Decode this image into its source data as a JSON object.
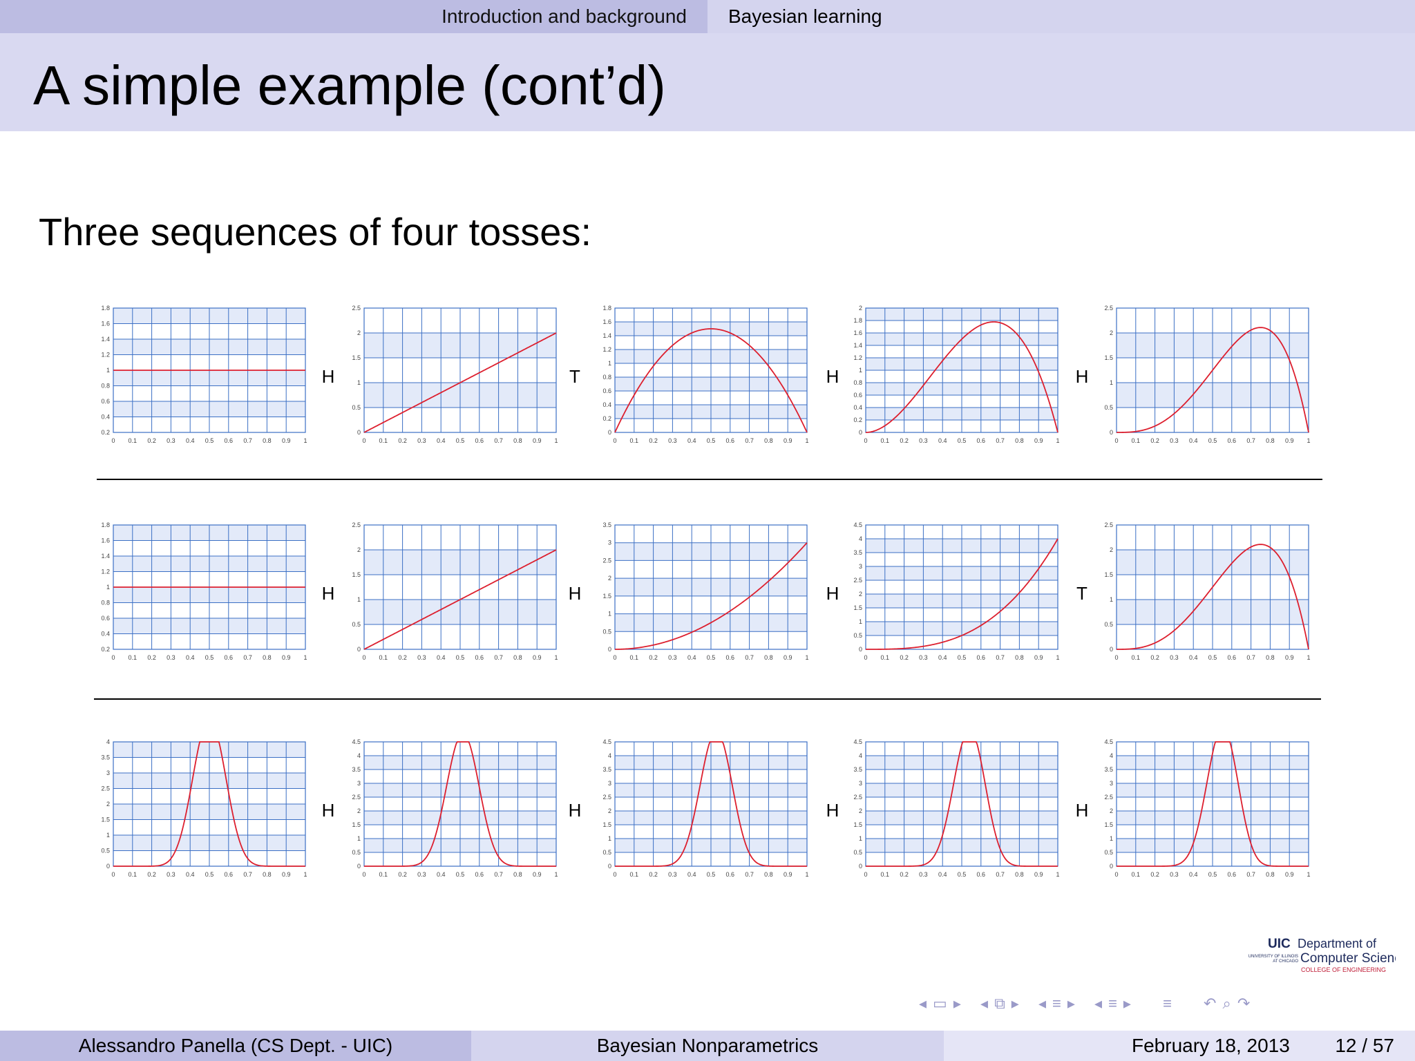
{
  "nav": {
    "sections": [
      "Introduction and background",
      "Bayesian learning"
    ]
  },
  "slide": {
    "title": "A simple example (cont’d)",
    "subtitle": "Three sequences of four tosses:"
  },
  "chart_data": [
    {
      "type": "line",
      "sequence": 1,
      "tosses": [
        "H",
        "T",
        "H",
        "H"
      ],
      "x_ticks": [
        "0",
        "0.1",
        "0.2",
        "0.3",
        "0.4",
        "0.5",
        "0.6",
        "0.7",
        "0.8",
        "0.9",
        "1"
      ],
      "panels": [
        {
          "series": [
            {
              "a": 1,
              "b": 1
            }
          ],
          "ylim": [
            0.2,
            1.8
          ],
          "y_ticks": [
            "0.2",
            "0.4",
            "0.6",
            "0.8",
            "1",
            "1.2",
            "1.4",
            "1.6",
            "1.8"
          ]
        },
        {
          "series": [
            {
              "a": 2,
              "b": 1
            }
          ],
          "ylim": [
            0,
            2.5
          ],
          "y_ticks": [
            "0",
            "0.5",
            "1",
            "1.5",
            "2",
            "2.5"
          ]
        },
        {
          "series": [
            {
              "a": 2,
              "b": 2
            }
          ],
          "ylim": [
            0,
            1.8
          ],
          "y_ticks": [
            "0",
            "0.2",
            "0.4",
            "0.6",
            "0.8",
            "1",
            "1.2",
            "1.4",
            "1.6",
            "1.8"
          ]
        },
        {
          "series": [
            {
              "a": 3,
              "b": 2
            }
          ],
          "ylim": [
            0,
            2
          ],
          "y_ticks": [
            "0",
            "0.2",
            "0.4",
            "0.6",
            "0.8",
            "1",
            "1.2",
            "1.4",
            "1.6",
            "1.8",
            "2"
          ]
        },
        {
          "series": [
            {
              "a": 4,
              "b": 2
            }
          ],
          "ylim": [
            0,
            2.5
          ],
          "y_ticks": [
            "0",
            "0.5",
            "1",
            "1.5",
            "2",
            "2.5"
          ]
        }
      ]
    },
    {
      "type": "line",
      "sequence": 2,
      "tosses": [
        "H",
        "H",
        "H",
        "T"
      ],
      "x_ticks": [
        "0",
        "0.1",
        "0.2",
        "0.3",
        "0.4",
        "0.5",
        "0.6",
        "0.7",
        "0.8",
        "0.9",
        "1"
      ],
      "panels": [
        {
          "series": [
            {
              "a": 1,
              "b": 1
            }
          ],
          "ylim": [
            0.2,
            1.8
          ],
          "y_ticks": [
            "0.2",
            "0.4",
            "0.6",
            "0.8",
            "1",
            "1.2",
            "1.4",
            "1.6",
            "1.8"
          ]
        },
        {
          "series": [
            {
              "a": 2,
              "b": 1
            }
          ],
          "ylim": [
            0,
            2.5
          ],
          "y_ticks": [
            "0",
            "0.5",
            "1",
            "1.5",
            "2",
            "2.5"
          ]
        },
        {
          "series": [
            {
              "a": 3,
              "b": 1
            }
          ],
          "ylim": [
            0,
            3.5
          ],
          "y_ticks": [
            "0",
            "0.5",
            "1",
            "1.5",
            "2",
            "2.5",
            "3",
            "3.5"
          ]
        },
        {
          "series": [
            {
              "a": 4,
              "b": 1
            }
          ],
          "ylim": [
            0,
            4.5
          ],
          "y_ticks": [
            "0",
            "0.5",
            "1",
            "1.5",
            "2",
            "2.5",
            "3",
            "3.5",
            "4",
            "4.5"
          ]
        },
        {
          "series": [
            {
              "a": 4,
              "b": 2
            }
          ],
          "ylim": [
            0,
            2.5
          ],
          "y_ticks": [
            "0",
            "0.5",
            "1",
            "1.5",
            "2",
            "2.5"
          ]
        }
      ]
    },
    {
      "type": "line",
      "sequence": 3,
      "tosses": [
        "H",
        "H",
        "H",
        "H"
      ],
      "x_ticks": [
        "0",
        "0.1",
        "0.2",
        "0.3",
        "0.4",
        "0.5",
        "0.6",
        "0.7",
        "0.8",
        "0.9",
        "1"
      ],
      "panels": [
        {
          "series": [
            {
              "a": 18,
              "b": 18
            }
          ],
          "ylim": [
            0,
            4
          ],
          "y_ticks": [
            "0",
            "0.5",
            "1",
            "1.5",
            "2",
            "2.5",
            "3",
            "3.5",
            "4"
          ]
        },
        {
          "series": [
            {
              "a": 19,
              "b": 18
            }
          ],
          "ylim": [
            0,
            4.5
          ],
          "y_ticks": [
            "0",
            "0.5",
            "1",
            "1.5",
            "2",
            "2.5",
            "3",
            "3.5",
            "4",
            "4.5"
          ]
        },
        {
          "series": [
            {
              "a": 20,
              "b": 18
            }
          ],
          "ylim": [
            0,
            4.5
          ],
          "y_ticks": [
            "0",
            "0.5",
            "1",
            "1.5",
            "2",
            "2.5",
            "3",
            "3.5",
            "4",
            "4.5"
          ]
        },
        {
          "series": [
            {
              "a": 21,
              "b": 18
            }
          ],
          "ylim": [
            0,
            4.5
          ],
          "y_ticks": [
            "0",
            "0.5",
            "1",
            "1.5",
            "2",
            "2.5",
            "3",
            "3.5",
            "4",
            "4.5"
          ]
        },
        {
          "series": [
            {
              "a": 22,
              "b": 18
            }
          ],
          "ylim": [
            0,
            4.5
          ],
          "y_ticks": [
            "0",
            "0.5",
            "1",
            "1.5",
            "2",
            "2.5",
            "3",
            "3.5",
            "4",
            "4.5"
          ]
        }
      ]
    }
  ],
  "colors": {
    "curve": "#dd1f2e",
    "grid": "#3b6fc4",
    "band": "#e3eaf9",
    "nav_bg": "#d4d4ee",
    "nav_active": "#bcbce2"
  },
  "logo": {
    "line1_bold": "UIC",
    "line1": "Department of",
    "small1": "UNIVERSITY OF ILLINOIS",
    "small2": "AT CHICAGO",
    "line2": "Computer Science",
    "line3": "COLLEGE OF ENGINEERING"
  },
  "navigation_icons": [
    "arrow-left-icon",
    "frame-icon",
    "arrow-right-icon",
    "arrow-left-icon",
    "subsection-icon",
    "arrow-right-icon",
    "arrow-left-icon",
    "section-icon",
    "arrow-right-icon",
    "arrow-left-icon",
    "section-icon",
    "arrow-right-icon",
    "align-icon",
    "undo-icon",
    "search-icon",
    "redo-icon"
  ],
  "footer": {
    "author": "Alessandro Panella  (CS Dept. - UIC)",
    "short_title": "Bayesian Nonparametrics",
    "date": "February 18, 2013",
    "page": "12 / 57"
  }
}
